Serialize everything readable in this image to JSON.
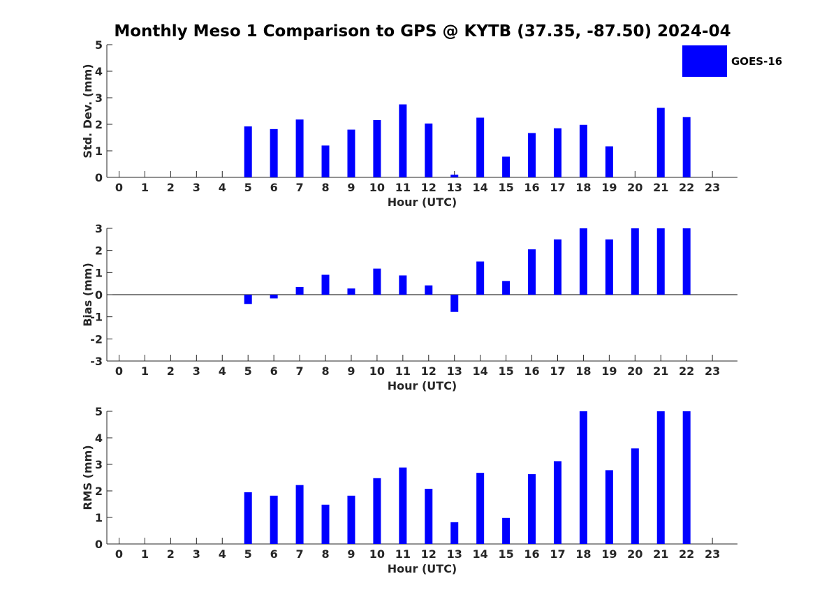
{
  "title": "Monthly Meso 1 Comparison to GPS @ KYTB (37.35, -87.50) 2024-04",
  "legend": {
    "label": "GOES-16",
    "color": "#0000ff"
  },
  "chart_data": [
    {
      "type": "bar",
      "name": "std-dev",
      "ylabel": "Std. Dev. (mm)",
      "xlabel": "Hour (UTC)",
      "ylim": [
        0,
        5
      ],
      "yticks": [
        "0",
        "1",
        "2",
        "3",
        "4",
        "5"
      ],
      "categories": [
        "0",
        "1",
        "2",
        "3",
        "4",
        "5",
        "6",
        "7",
        "8",
        "9",
        "10",
        "11",
        "12",
        "13",
        "14",
        "15",
        "16",
        "17",
        "18",
        "19",
        "20",
        "21",
        "22",
        "23"
      ],
      "values": [
        null,
        null,
        null,
        null,
        null,
        1.92,
        1.82,
        2.18,
        1.2,
        1.8,
        2.16,
        2.75,
        2.03,
        0.1,
        2.25,
        0.78,
        1.67,
        1.85,
        1.98,
        1.17,
        null,
        2.62,
        2.27,
        null
      ]
    },
    {
      "type": "bar",
      "name": "bias",
      "ylabel": "Bias (mm)",
      "xlabel": "Hour (UTC)",
      "ylim": [
        -3,
        3
      ],
      "yticks": [
        "-3",
        "-2",
        "-1",
        "0",
        "1",
        "2",
        "3"
      ],
      "zero_line": true,
      "categories": [
        "0",
        "1",
        "2",
        "3",
        "4",
        "5",
        "6",
        "7",
        "8",
        "9",
        "10",
        "11",
        "12",
        "13",
        "14",
        "15",
        "16",
        "17",
        "18",
        "19",
        "20",
        "21",
        "22",
        "23"
      ],
      "values": [
        null,
        null,
        null,
        null,
        null,
        -0.42,
        -0.17,
        0.35,
        0.9,
        0.28,
        1.18,
        0.87,
        0.42,
        -0.78,
        1.5,
        0.62,
        2.05,
        2.5,
        3.0,
        2.5,
        3.0,
        3.0,
        3.0,
        null
      ]
    },
    {
      "type": "bar",
      "name": "rms",
      "ylabel": "RMS (mm)",
      "xlabel": "Hour (UTC)",
      "ylim": [
        0,
        5
      ],
      "yticks": [
        "0",
        "1",
        "2",
        "3",
        "4",
        "5"
      ],
      "categories": [
        "0",
        "1",
        "2",
        "3",
        "4",
        "5",
        "6",
        "7",
        "8",
        "9",
        "10",
        "11",
        "12",
        "13",
        "14",
        "15",
        "16",
        "17",
        "18",
        "19",
        "20",
        "21",
        "22",
        "23"
      ],
      "values": [
        null,
        null,
        null,
        null,
        null,
        1.95,
        1.82,
        2.22,
        1.48,
        1.82,
        2.48,
        2.88,
        2.08,
        0.82,
        2.68,
        0.98,
        2.63,
        3.12,
        5.0,
        2.78,
        3.6,
        5.0,
        5.0,
        null
      ]
    }
  ]
}
